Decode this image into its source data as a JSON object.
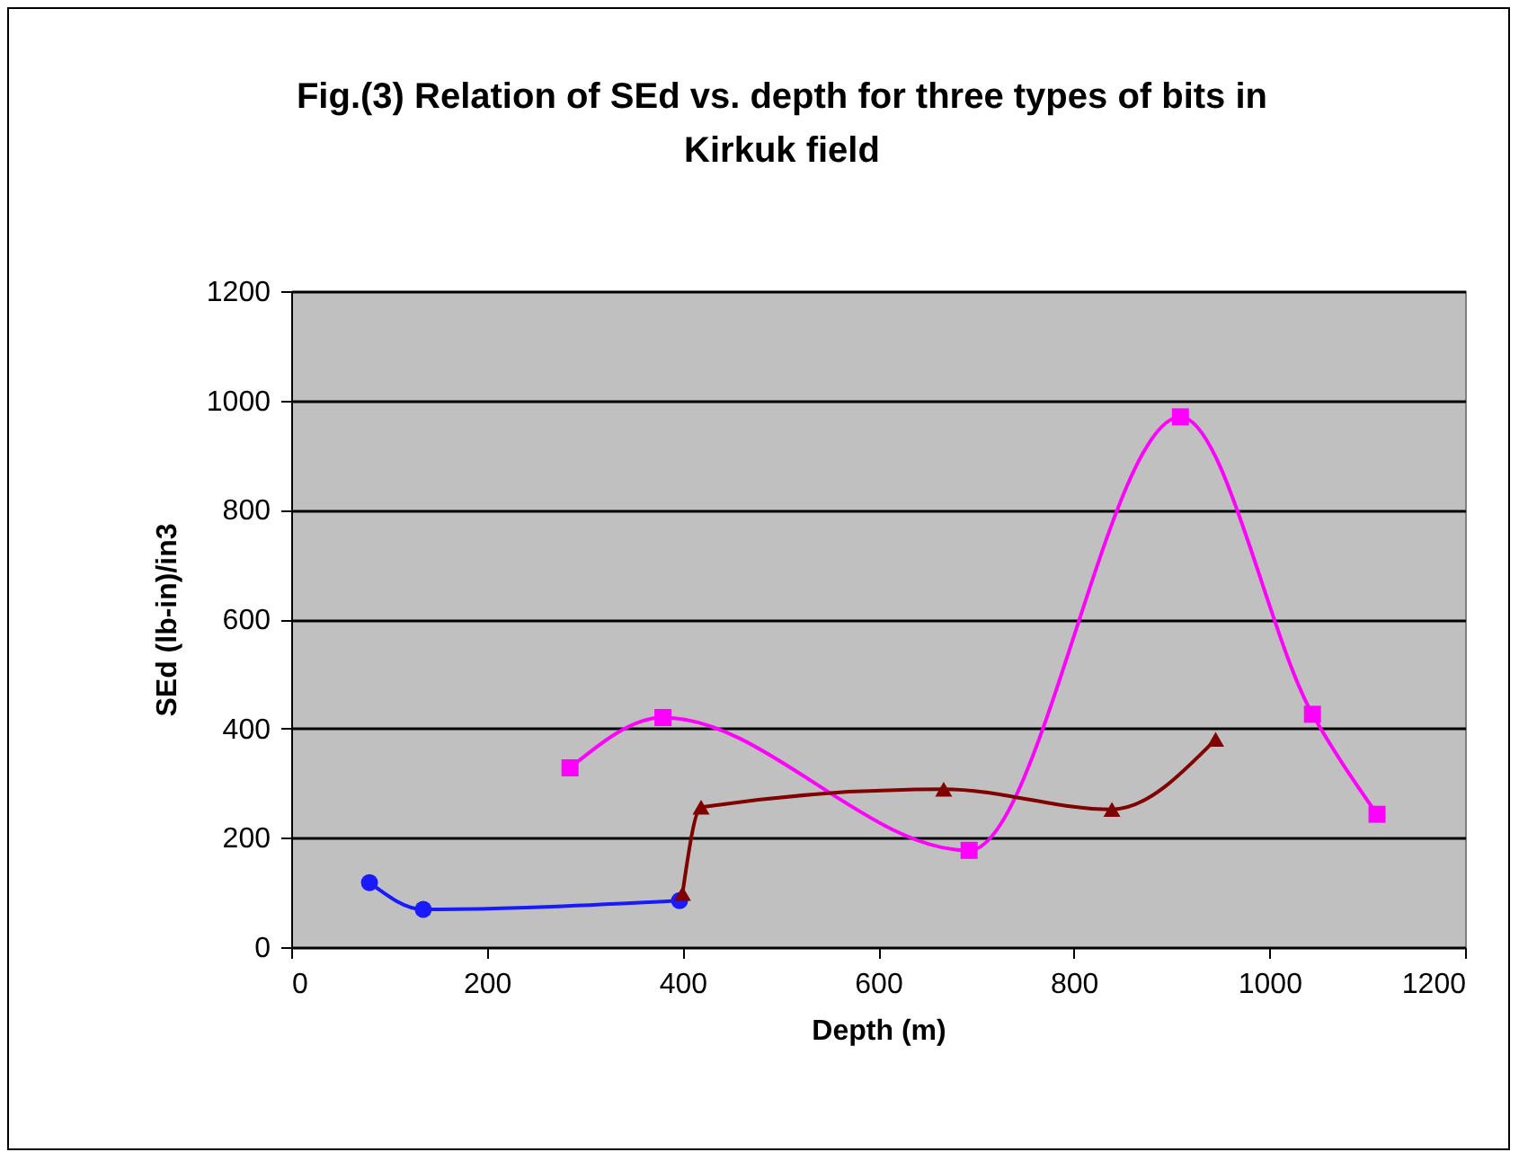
{
  "chart_data": {
    "type": "line",
    "title": "Fig.(3) Relation of SEd vs. depth for three types of bits in Kirkuk field",
    "xlabel": "Depth (m)",
    "ylabel": "SEd (lb-in)/in3",
    "xlim": [
      0,
      1200
    ],
    "xticks": [
      0,
      200,
      400,
      600,
      800,
      1000,
      1200
    ],
    "ylim": [
      0,
      1200
    ],
    "yticks": [
      0,
      200,
      400,
      600,
      800,
      1000,
      1200
    ],
    "grid": "y",
    "series": [
      {
        "color": "#1a1aff",
        "marker": "circle",
        "x": [
          80,
          135,
          397
        ],
        "values": [
          118,
          69,
          85
        ]
      },
      {
        "color": "#ff00ff",
        "marker": "square",
        "x": [
          285,
          380,
          693,
          909,
          1044,
          1110
        ],
        "values": [
          328,
          420,
          177,
          970,
          426,
          243
        ]
      },
      {
        "color": "#800000",
        "marker": "triangle",
        "x": [
          400,
          419,
          667,
          839,
          945
        ],
        "values": [
          98,
          256,
          289,
          252,
          380
        ]
      }
    ]
  }
}
